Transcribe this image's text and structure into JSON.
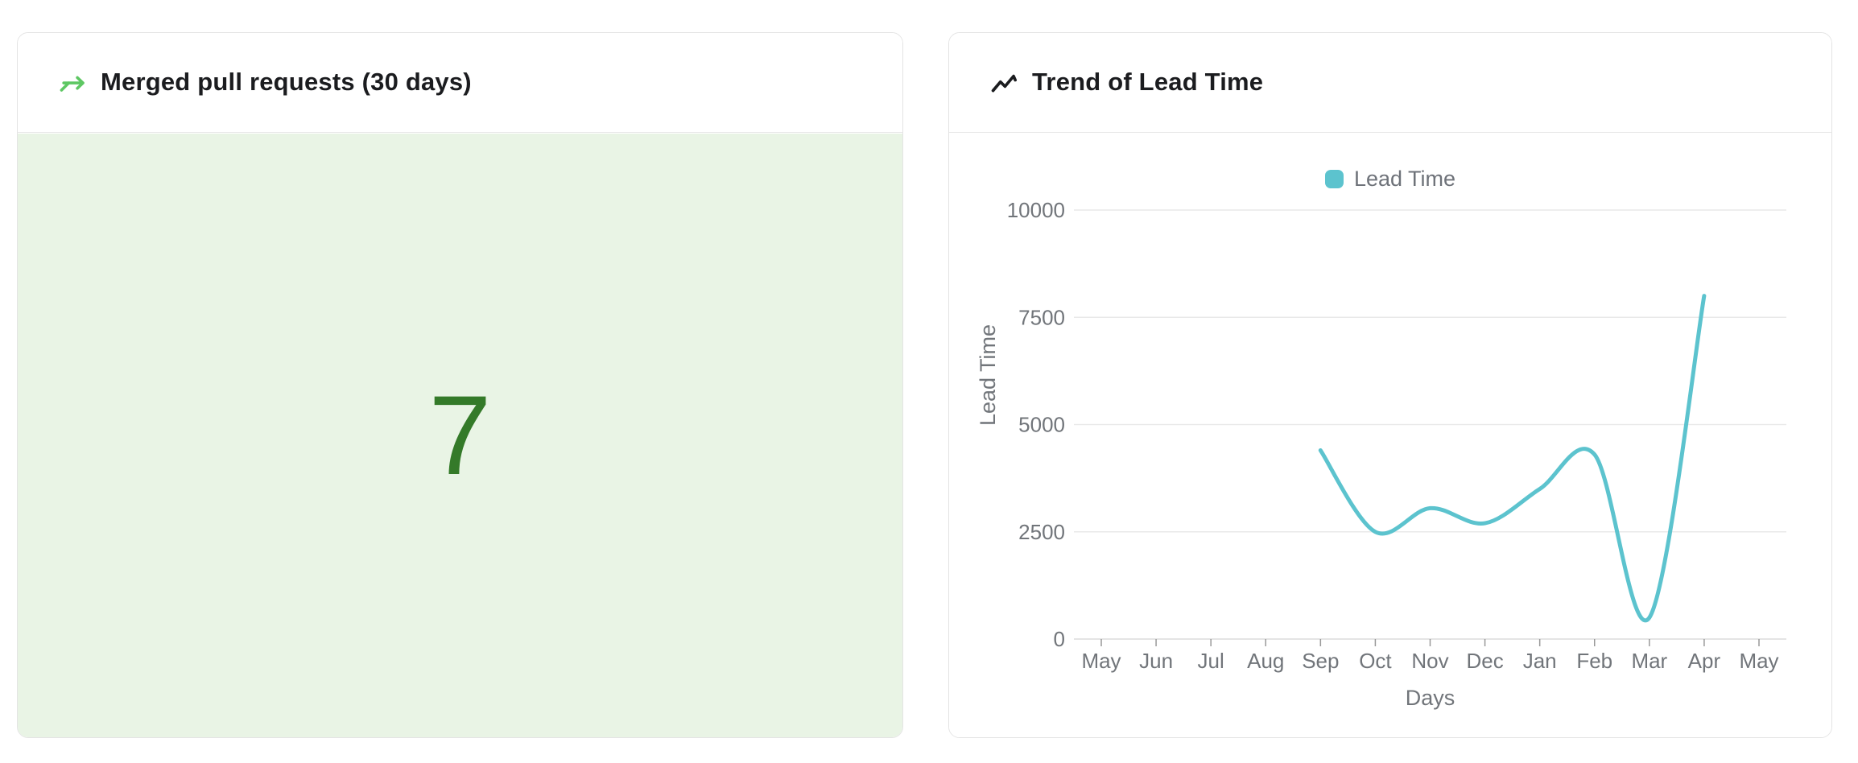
{
  "colors": {
    "card_border": "#e4e4e4",
    "divider": "#e8e8e8",
    "title_text": "#1b1c1f",
    "axis_text": "#71757a",
    "grid_line": "#e9e9e9",
    "axis_line": "#dcdcdc",
    "tick_mark": "#999999",
    "merged_body_bg": "#e9f4e5",
    "merged_value_color": "#347a29",
    "merge_icon_color": "#5ec763",
    "trend_icon_color": "#1b1c1f",
    "series_teal": "#5cc3ce"
  },
  "merged_card": {
    "title": "Merged pull requests (30 days)",
    "icon": "git-merge-icon",
    "value": "7"
  },
  "trend_card": {
    "title": "Trend of Lead Time",
    "icon": "trending-up-icon"
  },
  "chart_data": {
    "type": "line",
    "title": "Trend of Lead Time",
    "smooth": true,
    "grid": true,
    "legend": {
      "position": "top",
      "items": [
        "Lead Time"
      ]
    },
    "categories": [
      "May",
      "Jun",
      "Jul",
      "Aug",
      "Sep",
      "Oct",
      "Nov",
      "Dec",
      "Jan",
      "Feb",
      "Mar",
      "Apr",
      "May"
    ],
    "xlabel": "Days",
    "ylabel": "Lead Time",
    "ylim": [
      0,
      10000
    ],
    "yticks": [
      0,
      2500,
      5000,
      7500,
      10000
    ],
    "series": [
      {
        "name": "Lead Time",
        "color": "#5cc3ce",
        "line_width": 5,
        "values": [
          null,
          null,
          null,
          null,
          4400,
          2500,
          3050,
          2700,
          3500,
          4300,
          500,
          8000,
          null
        ]
      }
    ]
  }
}
